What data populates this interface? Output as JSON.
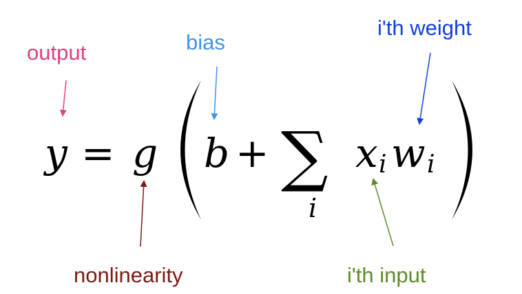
{
  "annotations": {
    "output": {
      "text": "output",
      "color": "#e0407f"
    },
    "bias": {
      "text": "bias",
      "color": "#3d94e8"
    },
    "weight": {
      "text": "i'th weight",
      "color": "#0f3fde"
    },
    "nonlinearity": {
      "text": "nonlinearity",
      "color": "#7a1a12"
    },
    "input": {
      "text": "i'th input",
      "color": "#5e8a2a"
    }
  },
  "equation": {
    "y": "y",
    "equals": "=",
    "g": "g",
    "b": "b",
    "plus": "+",
    "sum": "∑",
    "sum_index": "i",
    "x": "x",
    "x_sub": "i",
    "w": "w",
    "w_sub": "i"
  }
}
